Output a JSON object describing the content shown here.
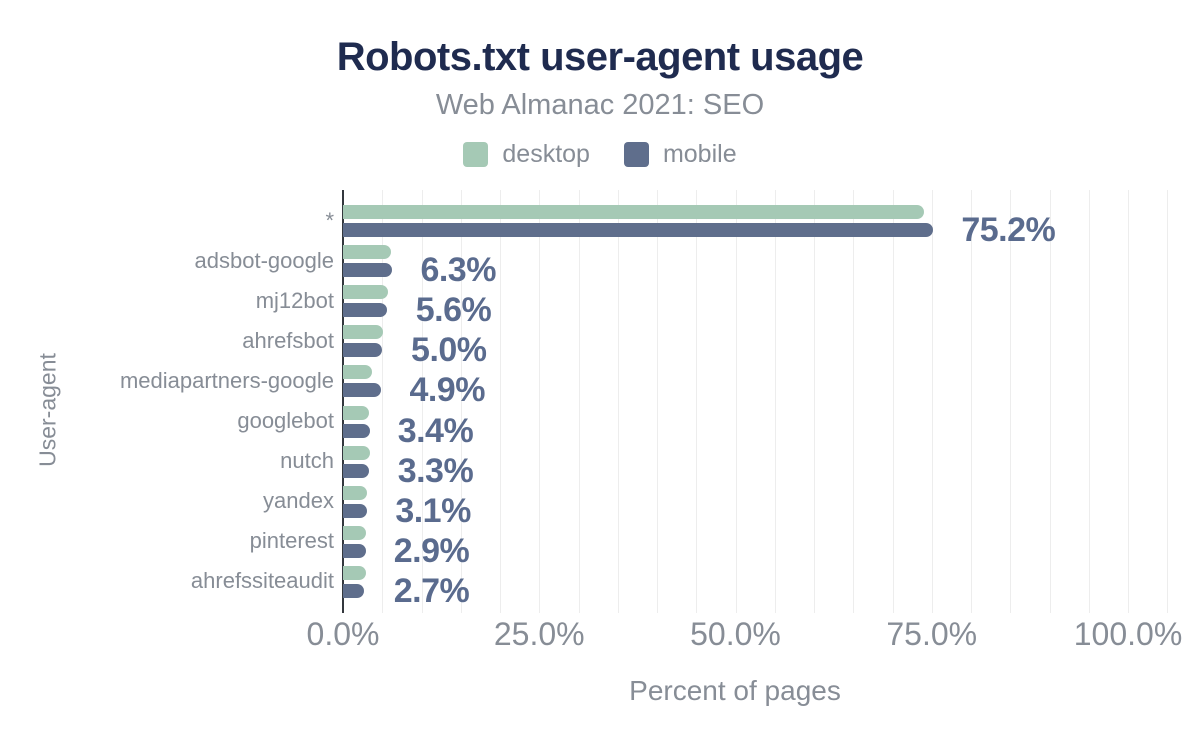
{
  "title": "Robots.txt user-agent usage",
  "subtitle": "Web Almanac 2021: SEO",
  "legend": [
    {
      "label": "desktop",
      "color": "#a5c9b5"
    },
    {
      "label": "mobile",
      "color": "#5f6e8c"
    }
  ],
  "colors": {
    "title": "#1f2b4f",
    "subtitle": "#878d96",
    "axis_text": "#878d96",
    "value_label": "#5a6b8e",
    "desktop": "#a5c9b5",
    "mobile": "#5f6e8c",
    "grid": "#ededed",
    "axis_line": "#33373d"
  },
  "chart_data": {
    "type": "bar",
    "orientation": "horizontal",
    "title": "Robots.txt user-agent usage",
    "subtitle": "Web Almanac 2021: SEO",
    "categories": [
      "*",
      "adsbot-google",
      "mj12bot",
      "ahrefsbot",
      "mediapartners-google",
      "googlebot",
      "nutch",
      "yandex",
      "pinterest",
      "ahrefssiteaudit"
    ],
    "series": [
      {
        "name": "desktop",
        "color": "#a5c9b5",
        "values": [
          74.0,
          6.1,
          5.7,
          5.1,
          3.7,
          3.3,
          3.4,
          3.1,
          2.9,
          2.9
        ]
      },
      {
        "name": "mobile",
        "color": "#5f6e8c",
        "values": [
          75.2,
          6.3,
          5.6,
          5.0,
          4.9,
          3.4,
          3.3,
          3.1,
          2.9,
          2.7
        ]
      }
    ],
    "value_labels": [
      "75.2%",
      "6.3%",
      "5.6%",
      "5.0%",
      "4.9%",
      "3.4%",
      "3.3%",
      "3.1%",
      "2.9%",
      "2.7%"
    ],
    "value_labels_series": "mobile",
    "xlabel": "Percent of pages",
    "ylabel": "User-agent",
    "xlim": [
      0,
      105
    ],
    "xticks": [
      {
        "value": 0,
        "label": "0.0%"
      },
      {
        "value": 25,
        "label": "25.0%"
      },
      {
        "value": 50,
        "label": "50.0%"
      },
      {
        "value": 75,
        "label": "75.0%"
      },
      {
        "value": 100,
        "label": "100.0%"
      }
    ],
    "grid": {
      "vertical": true,
      "step_percent": 5,
      "horizontal": false
    },
    "legend_position": "top-center"
  }
}
